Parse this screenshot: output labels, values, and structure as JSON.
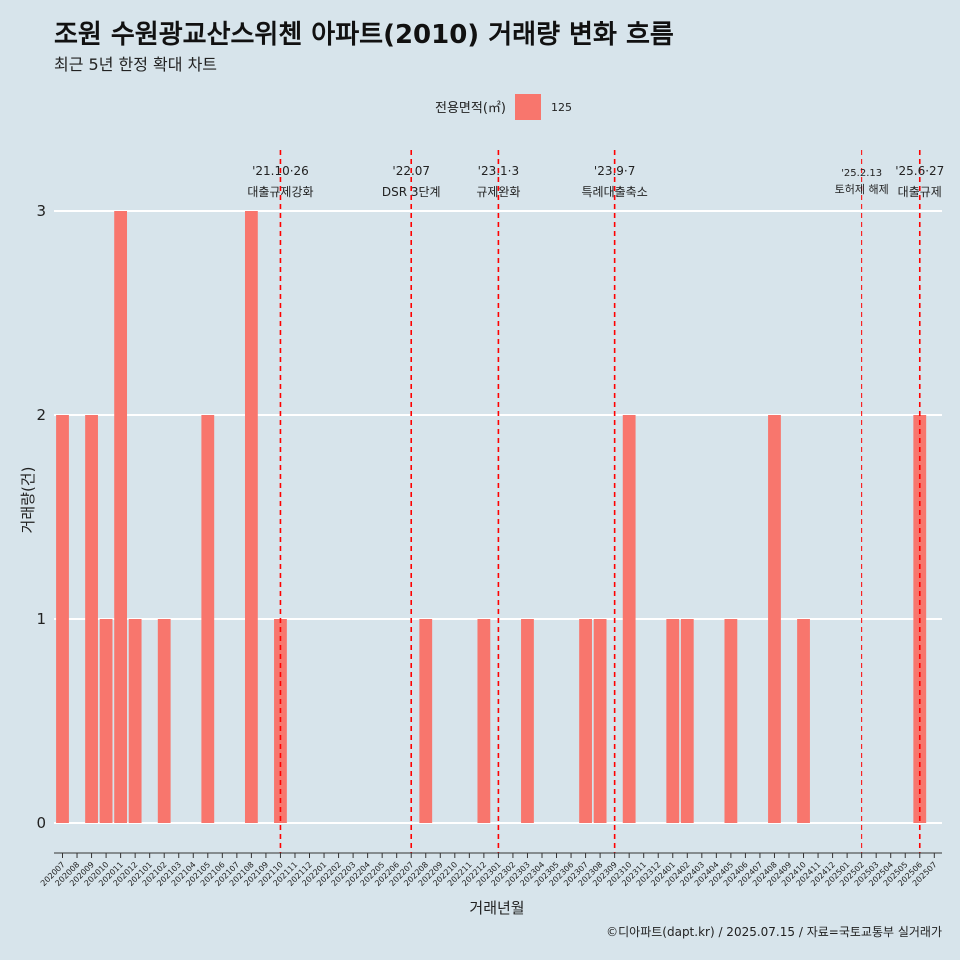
{
  "title": "조원 수원광교산스위첸 아파트(2010) 거래량 변화 흐름",
  "subtitle": "최근 5년 한정 확대 차트",
  "caption": "©디아파트(dapt.kr) / 2025.07.15 / 자료=국토교통부 실거래가",
  "colors": {
    "background": "#d7e4eb",
    "bar": "#f8766d",
    "event_line": "#ff0000",
    "grid": "#ffffff"
  },
  "chart_data": {
    "type": "bar",
    "xlabel": "거래년월",
    "ylabel": "거래량(건)",
    "ylim": [
      0,
      3
    ],
    "yticks": [
      "0",
      "1",
      "2",
      "3"
    ],
    "legend": {
      "title": "전용면적(㎡)",
      "entries": [
        "125"
      ],
      "position": "top"
    },
    "grid": true,
    "categories": [
      "202007",
      "202008",
      "202009",
      "202010",
      "202011",
      "202012",
      "202101",
      "202102",
      "202103",
      "202104",
      "202105",
      "202106",
      "202107",
      "202108",
      "202109",
      "202110",
      "202111",
      "202112",
      "202201",
      "202202",
      "202203",
      "202204",
      "202205",
      "202206",
      "202207",
      "202208",
      "202209",
      "202210",
      "202211",
      "202212",
      "202301",
      "202302",
      "202303",
      "202304",
      "202305",
      "202306",
      "202307",
      "202308",
      "202309",
      "202310",
      "202311",
      "202312",
      "202401",
      "202402",
      "202403",
      "202404",
      "202405",
      "202406",
      "202407",
      "202408",
      "202409",
      "202410",
      "202411",
      "202412",
      "202501",
      "202502",
      "202503",
      "202504",
      "202505",
      "202506",
      "202507"
    ],
    "series": [
      {
        "name": "125",
        "values": [
          2,
          0,
          2,
          1,
          3,
          1,
          0,
          1,
          0,
          0,
          2,
          0,
          0,
          3,
          0,
          1,
          0,
          0,
          0,
          0,
          0,
          0,
          0,
          0,
          0,
          1,
          0,
          0,
          0,
          1,
          0,
          0,
          1,
          0,
          0,
          0,
          1,
          1,
          0,
          2,
          0,
          0,
          1,
          1,
          0,
          0,
          1,
          0,
          0,
          2,
          0,
          1,
          0,
          0,
          0,
          0,
          0,
          0,
          0,
          2,
          0
        ]
      }
    ],
    "annotations": [
      {
        "x": "202110",
        "date": "'21.10·26",
        "label": "대출규제강화",
        "size": "normal"
      },
      {
        "x": "202207",
        "date": "'22.07",
        "label": "DSR 3단계",
        "size": "normal"
      },
      {
        "x": "202301",
        "date": "'23.1·3",
        "label": "규제완화",
        "size": "normal"
      },
      {
        "x": "202309",
        "date": "'23.9·7",
        "label": "특례대출축소",
        "size": "normal"
      },
      {
        "x": "202502",
        "date": "'25.2.13",
        "label": "토허제 해제",
        "size": "small"
      },
      {
        "x": "202506",
        "date": "'25.6·27",
        "label": "대출규제",
        "size": "normal"
      }
    ]
  }
}
